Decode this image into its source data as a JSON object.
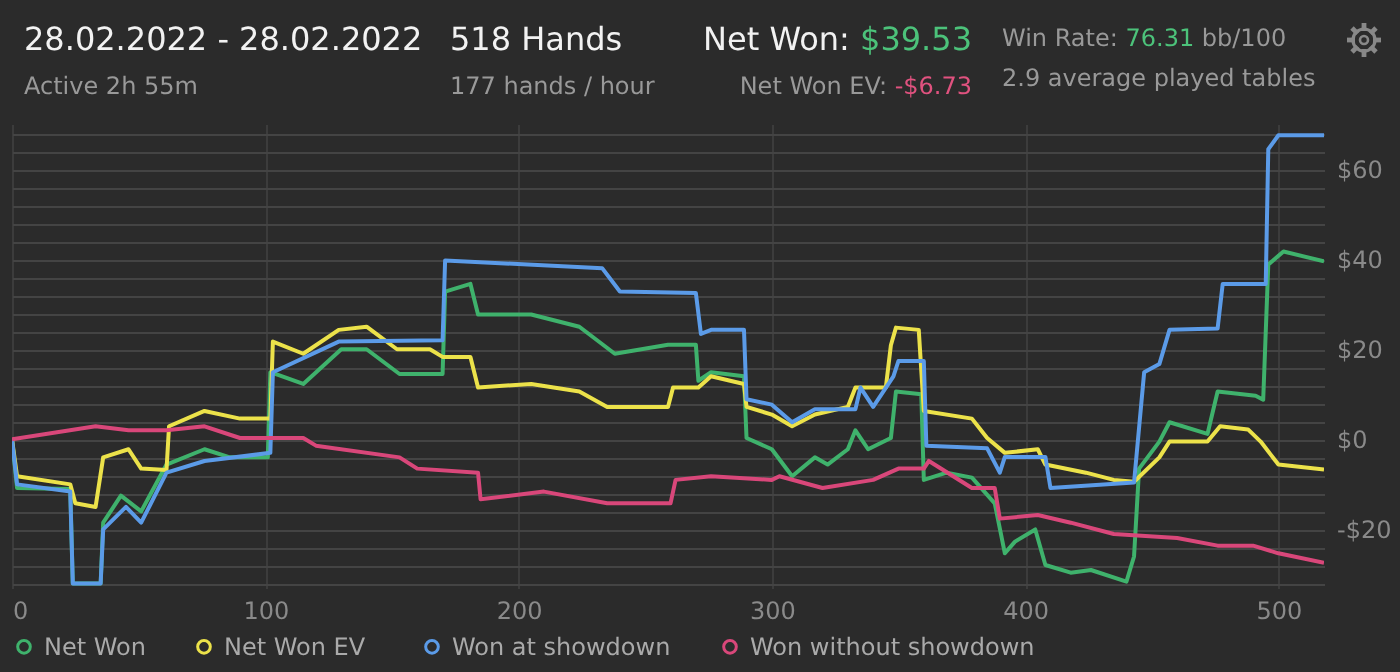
{
  "chart_data": {
    "type": "line",
    "title": "28.02.2022 - 28.02.2022",
    "subtitle": "Active 2h 55m",
    "annotations": [
      "518 Hands",
      "177 hands / hour",
      "Net Won: $39.53",
      "Net Won  EV: -$6.73",
      "Win Rate: 76.31 bb/100",
      "2.9 average played tables"
    ],
    "series": [
      {
        "name": "Net Won",
        "color": "#3fb26c",
        "x": [
          0,
          2,
          23,
          24,
          35,
          36,
          43,
          51,
          61,
          76,
          86,
          101,
          102,
          115,
          130,
          140,
          153,
          170,
          171,
          181,
          184,
          205,
          224,
          238,
          259,
          270,
          271,
          276,
          289,
          290,
          300,
          308,
          317,
          322,
          330,
          333,
          338,
          347,
          349,
          359,
          360,
          369,
          379,
          388,
          392,
          396,
          404,
          408,
          418,
          426,
          440,
          443,
          445,
          453,
          457,
          472,
          476,
          491,
          494,
          496,
          502,
          518
        ],
        "values": [
          0,
          -10.8,
          -11,
          -32,
          -32,
          -18.5,
          -12.5,
          -16,
          -5.6,
          -2.2,
          -4,
          -4,
          14.9,
          12.3,
          20,
          20,
          14.5,
          14.5,
          32.8,
          34.5,
          27.7,
          27.7,
          25,
          19,
          21,
          21,
          13,
          14.9,
          14,
          0.3,
          -2.2,
          -8.2,
          -4,
          -5.6,
          -2.2,
          2,
          -2.2,
          0.3,
          10.6,
          10,
          -9,
          -7.4,
          -8.5,
          -14.2,
          -25.3,
          -22.7,
          -20,
          -27.9,
          -29.6,
          -29,
          -31.6,
          -26,
          -6.5,
          -0.5,
          3.8,
          1.2,
          10.6,
          9.7,
          8.8,
          38.8,
          41.7,
          39.5
        ]
      },
      {
        "name": "Net Won  EV",
        "color": "#ece24a",
        "x": [
          0,
          2,
          23,
          25,
          33,
          36,
          46,
          51,
          61,
          62,
          76,
          90,
          102,
          103,
          115,
          129,
          140,
          152,
          165,
          170,
          181,
          184,
          205,
          224,
          235,
          259,
          261,
          271,
          276,
          289,
          290,
          300,
          308,
          317,
          330,
          333,
          345,
          347,
          349,
          358,
          360,
          379,
          385,
          392,
          405,
          408,
          424,
          435,
          443,
          453,
          457,
          472,
          477,
          488,
          493,
          500,
          518
        ],
        "values": [
          0,
          -8.2,
          -10,
          -14.2,
          -15,
          -4,
          -2.2,
          -6.5,
          -6.8,
          2.9,
          6.3,
          4.6,
          4.6,
          21.7,
          19,
          24.3,
          25,
          20,
          20,
          18.3,
          18.3,
          11.5,
          12.3,
          10.6,
          7.2,
          7.2,
          11.5,
          11.5,
          14,
          12.3,
          7.2,
          5.5,
          2.9,
          5.5,
          7.2,
          11.5,
          11.5,
          20.9,
          24.8,
          24.3,
          6.3,
          4.6,
          0.3,
          -3,
          -2.2,
          -5.6,
          -7.4,
          -9,
          -9.4,
          -4,
          -0.5,
          -0.5,
          2.9,
          2.2,
          -0.5,
          -5.6,
          -6.7
        ]
      },
      {
        "name": "Won at showdown",
        "color": "#5b9be8",
        "x": [
          0,
          2,
          23,
          24,
          35,
          36,
          45,
          51,
          61,
          76,
          102,
          103,
          129,
          170,
          171,
          233,
          240,
          270,
          272,
          276,
          289,
          290,
          300,
          308,
          317,
          333,
          335,
          340,
          348,
          350,
          360,
          361,
          385,
          390,
          392,
          408,
          410,
          443,
          447,
          453,
          457,
          476,
          478,
          495,
          496,
          500,
          518
        ],
        "values": [
          0,
          -10,
          -11.6,
          -32,
          -32,
          -20,
          -15,
          -18.5,
          -7.4,
          -4.8,
          -3,
          14.9,
          21.7,
          22,
          39.7,
          38,
          32.8,
          32.5,
          23.4,
          24.3,
          24.3,
          8.9,
          7.7,
          3.8,
          6.7,
          6.7,
          11.5,
          7.2,
          14,
          17.4,
          17.4,
          -1.4,
          -2,
          -7.4,
          -3.9,
          -3.9,
          -10.8,
          -9.6,
          14.9,
          16.7,
          24.3,
          24.6,
          34.5,
          34.5,
          64.4,
          67.5,
          67.5
        ]
      },
      {
        "name": "Won without showdown",
        "color": "#d9477a",
        "x": [
          0,
          33,
          46,
          61,
          76,
          90,
          100,
          115,
          120,
          153,
          160,
          184,
          185,
          210,
          235,
          260,
          262,
          276,
          300,
          303,
          320,
          340,
          350,
          360,
          362,
          379,
          388,
          390,
          405,
          418,
          435,
          460,
          476,
          490,
          500,
          518
        ],
        "values": [
          0,
          2.9,
          2,
          2,
          2.9,
          0.3,
          0.3,
          0.3,
          -1.4,
          -4,
          -6.5,
          -7.4,
          -13.3,
          -11.6,
          -14.2,
          -14.2,
          -9,
          -8.2,
          -9,
          -8.2,
          -10.8,
          -9,
          -6.5,
          -6.5,
          -4.8,
          -10.8,
          -10.8,
          -17.6,
          -16.8,
          -18.5,
          -21,
          -21.9,
          -23.6,
          -23.6,
          -25.3,
          -27.4
        ]
      }
    ],
    "xlim": [
      0,
      518
    ],
    "xticks": [
      0,
      100,
      200,
      300,
      400,
      500
    ],
    "ylim": [
      -33,
      70
    ],
    "yticks": [
      {
        "value": -32,
        "label": null
      },
      {
        "value": -28,
        "label": null
      },
      {
        "value": -24,
        "label": null
      },
      {
        "value": -20,
        "label": "-$20"
      },
      {
        "value": -16,
        "label": null
      },
      {
        "value": -12,
        "label": null
      },
      {
        "value": -8,
        "label": null
      },
      {
        "value": -4,
        "label": null
      },
      {
        "value": 0,
        "label": "$0"
      },
      {
        "value": 4,
        "label": null
      },
      {
        "value": 8,
        "label": null
      },
      {
        "value": 12,
        "label": null
      },
      {
        "value": 16,
        "label": null
      },
      {
        "value": 20,
        "label": "$20"
      },
      {
        "value": 24,
        "label": null
      },
      {
        "value": 28,
        "label": null
      },
      {
        "value": 32,
        "label": null
      },
      {
        "value": 36,
        "label": null
      },
      {
        "value": 40,
        "label": "$40"
      },
      {
        "value": 44,
        "label": null
      },
      {
        "value": 48,
        "label": null
      },
      {
        "value": 52,
        "label": null
      },
      {
        "value": 56,
        "label": null
      },
      {
        "value": 60,
        "label": "$60"
      },
      {
        "value": 64,
        "label": null
      },
      {
        "value": 68,
        "label": null
      }
    ],
    "grid": true,
    "legend": "bottom",
    "marker": "none",
    "line_style": "solid"
  }
}
